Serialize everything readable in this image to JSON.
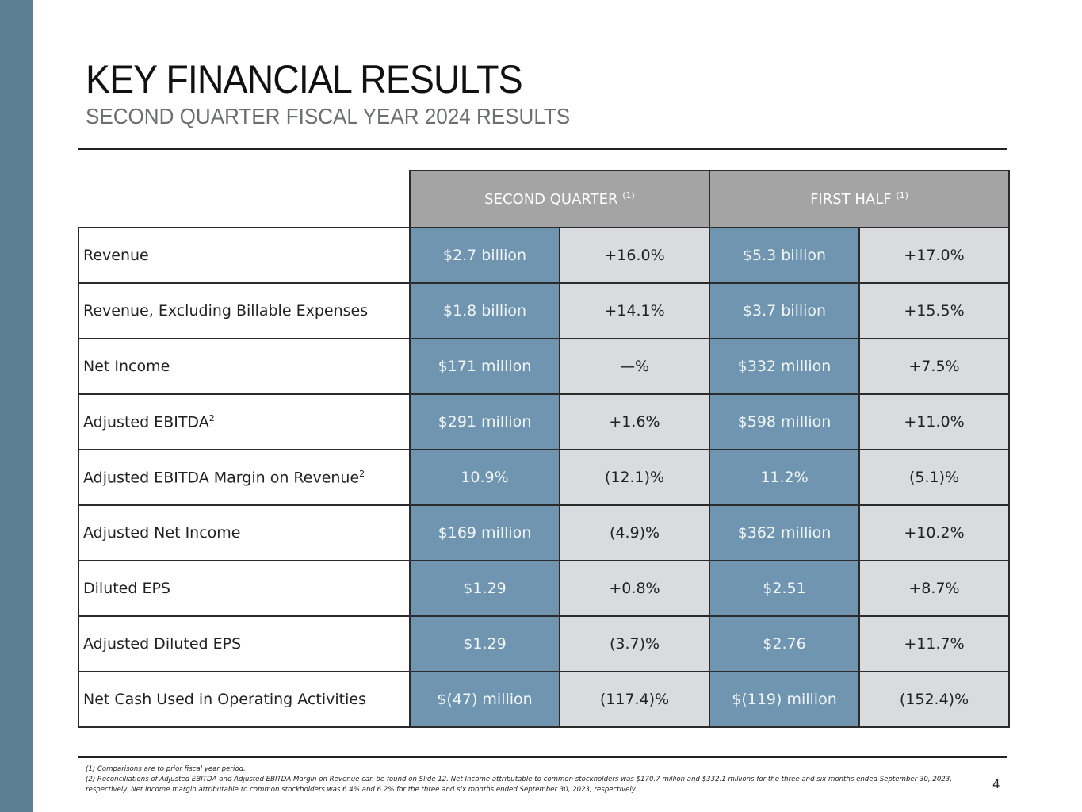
{
  "header": {
    "title": "KEY FINANCIAL RESULTS",
    "subtitle": "SECOND QUARTER FISCAL YEAR 2024 RESULTS"
  },
  "table": {
    "groups": [
      {
        "label": "SECOND QUARTER",
        "note": "(1)"
      },
      {
        "label": "FIRST HALF",
        "note": "(1)"
      }
    ],
    "rows": [
      {
        "label": "Revenue",
        "sup": "",
        "q_value": "$2.7 billion",
        "q_change": "+16.0%",
        "h_value": "$5.3 billion",
        "h_change": "+17.0%"
      },
      {
        "label": "Revenue, Excluding Billable Expenses",
        "sup": "",
        "q_value": "$1.8 billion",
        "q_change": "+14.1%",
        "h_value": "$3.7 billion",
        "h_change": "+15.5%"
      },
      {
        "label": "Net Income",
        "sup": "",
        "q_value": "$171 million",
        "q_change": "—%",
        "h_value": "$332 million",
        "h_change": "+7.5%"
      },
      {
        "label": "Adjusted EBITDA",
        "sup": "2",
        "q_value": "$291 million",
        "q_change": "+1.6%",
        "h_value": "$598 million",
        "h_change": "+11.0%"
      },
      {
        "label": "Adjusted EBITDA Margin on Revenue",
        "sup": "2",
        "q_value": "10.9%",
        "q_change": "(12.1)%",
        "h_value": "11.2%",
        "h_change": "(5.1)%"
      },
      {
        "label": "Adjusted Net Income",
        "sup": "",
        "q_value": "$169 million",
        "q_change": "(4.9)%",
        "h_value": "$362 million",
        "h_change": "+10.2%"
      },
      {
        "label": "Diluted EPS",
        "sup": "",
        "q_value": "$1.29",
        "q_change": "+0.8%",
        "h_value": "$2.51",
        "h_change": "+8.7%"
      },
      {
        "label": "Adjusted Diluted EPS",
        "sup": "",
        "q_value": "$1.29",
        "q_change": "(3.7)%",
        "h_value": "$2.76",
        "h_change": "+11.7%"
      },
      {
        "label": "Net Cash Used in Operating Activities",
        "sup": "",
        "q_value": "$(47) million",
        "q_change": "(117.4)%",
        "h_value": "$(119) million",
        "h_change": "(152.4)%"
      }
    ]
  },
  "footnotes": [
    "(1) Comparisons are to prior fiscal year period.",
    "(2) Reconciliations of Adjusted EBITDA and Adjusted EBITDA Margin on Revenue can be found on Slide 12. Net Income attributable to common stockholders was $170.7 million and $332.1 millions for the three and six months ended September 30, 2023, respectively.  Net income margin attributable to common stockholders was 6.4% and 6.2% for the three and six months ended September 30, 2023, respectively."
  ],
  "page_number": "4",
  "colors": {
    "side_bar": "#5c7f95",
    "header_cell": "#a4a4a4",
    "value_cell": "#6f95b0",
    "change_cell": "#d9dbde"
  }
}
